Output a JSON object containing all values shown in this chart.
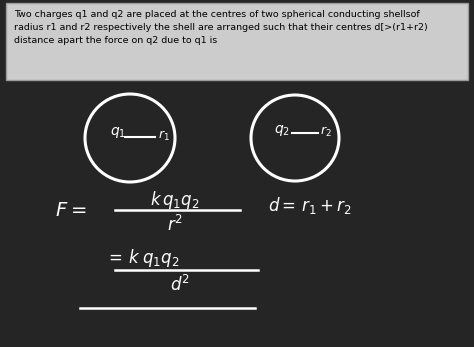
{
  "bg_color": "#252525",
  "text_box_bg": "#cccccc",
  "text_box_text": "#000000",
  "text_box_content": "Two charges q1 and q2 are placed at the centres of two spherical conducting shellsof\nradius r1 and r2 respectively the shell are arranged such that their centres d[>(r1+r2)\ndistance apart the force on q2 due to q1 is",
  "circle_color": "#ffffff",
  "circle_linewidth": 2.2,
  "formula_color": "#ffffff",
  "figsize": [
    4.74,
    3.47
  ],
  "dpi": 100
}
